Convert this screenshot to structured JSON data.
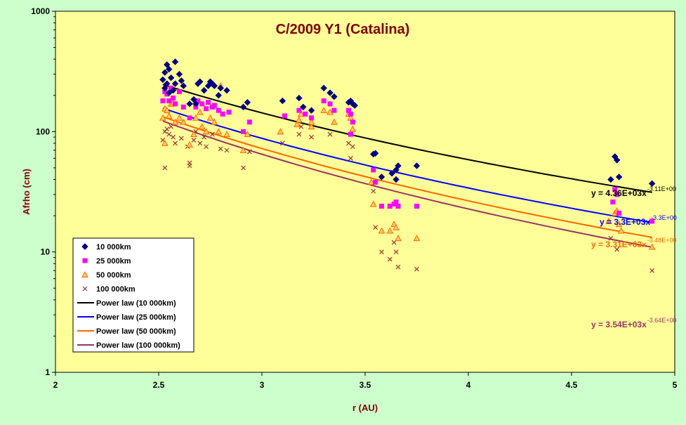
{
  "chart_data": {
    "type": "scatter",
    "title": "C/2009 Y1 (Catalina)",
    "xlabel": "r (AU)",
    "ylabel": "Afrho (cm)",
    "x_scale": "linear",
    "y_scale": "log",
    "xlim": [
      2,
      5
    ],
    "ylim": [
      1,
      1000
    ],
    "x_ticks": [
      "2",
      "2.5",
      "3",
      "3.5",
      "4",
      "4.5",
      "5"
    ],
    "y_ticks": [
      "1",
      "10",
      "100",
      "1000"
    ],
    "legend_position": "bottom-left",
    "colors": {
      "plot_bg": "#ffff99",
      "outer_bg": "#ccffcc",
      "title": "#800000",
      "axis_label": "#800000",
      "s10": "#000080",
      "s25": "#ff00ff",
      "s50": "#ff6600",
      "s100": "#993333",
      "fit10": "#000000",
      "fit25": "#0000ff",
      "fit50": "#ff6600",
      "fit100": "#993366"
    },
    "series": [
      {
        "name": "10 000km",
        "marker": "diamond",
        "points": [
          [
            2.52,
            270
          ],
          [
            2.53,
            310
          ],
          [
            2.54,
            360
          ],
          [
            2.55,
            330
          ],
          [
            2.53,
            230
          ],
          [
            2.54,
            250
          ],
          [
            2.55,
            210
          ],
          [
            2.56,
            280
          ],
          [
            2.57,
            220
          ],
          [
            2.58,
            250
          ],
          [
            2.58,
            380
          ],
          [
            2.6,
            300
          ],
          [
            2.61,
            265
          ],
          [
            2.62,
            240
          ],
          [
            2.65,
            170
          ],
          [
            2.67,
            185
          ],
          [
            2.68,
            170
          ],
          [
            2.69,
            250
          ],
          [
            2.7,
            260
          ],
          [
            2.72,
            220
          ],
          [
            2.74,
            240
          ],
          [
            2.75,
            260
          ],
          [
            2.76,
            250
          ],
          [
            2.77,
            240
          ],
          [
            2.79,
            200
          ],
          [
            2.8,
            230
          ],
          [
            2.83,
            220
          ],
          [
            2.91,
            160
          ],
          [
            2.93,
            175
          ],
          [
            3.1,
            180
          ],
          [
            3.18,
            190
          ],
          [
            3.2,
            160
          ],
          [
            3.24,
            150
          ],
          [
            3.3,
            230
          ],
          [
            3.33,
            210
          ],
          [
            3.35,
            195
          ],
          [
            3.42,
            175
          ],
          [
            3.43,
            180
          ],
          [
            3.44,
            170
          ],
          [
            3.45,
            165
          ],
          [
            3.54,
            65
          ],
          [
            3.55,
            66
          ],
          [
            3.58,
            42
          ],
          [
            3.63,
            45
          ],
          [
            3.65,
            40
          ],
          [
            3.65,
            48
          ],
          [
            3.66,
            52
          ],
          [
            3.75,
            52
          ],
          [
            4.69,
            40
          ],
          [
            4.71,
            62
          ],
          [
            4.72,
            58
          ],
          [
            4.73,
            42
          ],
          [
            4.89,
            37
          ]
        ]
      },
      {
        "name": "25 000km",
        "marker": "square",
        "points": [
          [
            2.52,
            180
          ],
          [
            2.53,
            215
          ],
          [
            2.54,
            205
          ],
          [
            2.55,
            180
          ],
          [
            2.56,
            230
          ],
          [
            2.57,
            190
          ],
          [
            2.58,
            170
          ],
          [
            2.6,
            215
          ],
          [
            2.62,
            160
          ],
          [
            2.65,
            130
          ],
          [
            2.68,
            160
          ],
          [
            2.69,
            180
          ],
          [
            2.71,
            170
          ],
          [
            2.73,
            155
          ],
          [
            2.74,
            175
          ],
          [
            2.76,
            160
          ],
          [
            2.77,
            165
          ],
          [
            2.79,
            150
          ],
          [
            2.81,
            140
          ],
          [
            2.84,
            145
          ],
          [
            2.91,
            100
          ],
          [
            2.94,
            120
          ],
          [
            3.11,
            135
          ],
          [
            3.18,
            150
          ],
          [
            3.21,
            140
          ],
          [
            3.24,
            130
          ],
          [
            3.3,
            180
          ],
          [
            3.33,
            170
          ],
          [
            3.35,
            150
          ],
          [
            3.42,
            150
          ],
          [
            3.43,
            140
          ],
          [
            3.44,
            120
          ],
          [
            3.43,
            95
          ],
          [
            3.54,
            48
          ],
          [
            3.55,
            38
          ],
          [
            3.58,
            24
          ],
          [
            3.62,
            24
          ],
          [
            3.64,
            25
          ],
          [
            3.65,
            26
          ],
          [
            3.66,
            24
          ],
          [
            3.75,
            24
          ],
          [
            4.7,
            26
          ],
          [
            4.71,
            33
          ],
          [
            4.72,
            30
          ],
          [
            4.73,
            21
          ],
          [
            4.89,
            18
          ]
        ]
      },
      {
        "name": "50 000km",
        "marker": "triangle",
        "points": [
          [
            2.52,
            130
          ],
          [
            2.53,
            155
          ],
          [
            2.54,
            150
          ],
          [
            2.53,
            80
          ],
          [
            2.55,
            135
          ],
          [
            2.56,
            170
          ],
          [
            2.57,
            175
          ],
          [
            2.58,
            120
          ],
          [
            2.6,
            130
          ],
          [
            2.62,
            120
          ],
          [
            2.65,
            78
          ],
          [
            2.67,
            95
          ],
          [
            2.68,
            130
          ],
          [
            2.7,
            145
          ],
          [
            2.71,
            110
          ],
          [
            2.73,
            100
          ],
          [
            2.75,
            130
          ],
          [
            2.77,
            120
          ],
          [
            2.79,
            100
          ],
          [
            2.8,
            240
          ],
          [
            2.83,
            95
          ],
          [
            2.91,
            70
          ],
          [
            2.93,
            95
          ],
          [
            3.09,
            100
          ],
          [
            3.17,
            115
          ],
          [
            3.18,
            125
          ],
          [
            3.19,
            140
          ],
          [
            3.24,
            110
          ],
          [
            3.24,
            120
          ],
          [
            3.3,
            150
          ],
          [
            3.33,
            145
          ],
          [
            3.35,
            120
          ],
          [
            3.42,
            140
          ],
          [
            3.43,
            130
          ],
          [
            3.44,
            105
          ],
          [
            3.53,
            38
          ],
          [
            3.54,
            25
          ],
          [
            3.58,
            15
          ],
          [
            3.62,
            15
          ],
          [
            3.64,
            17
          ],
          [
            3.65,
            16
          ],
          [
            3.66,
            13
          ],
          [
            3.75,
            13
          ],
          [
            4.68,
            18
          ],
          [
            4.71,
            21
          ],
          [
            4.72,
            22
          ],
          [
            4.73,
            17
          ],
          [
            4.74,
            15
          ],
          [
            4.89,
            11
          ]
        ]
      },
      {
        "name": "100 000km",
        "marker": "cross",
        "points": [
          [
            2.52,
            85
          ],
          [
            2.53,
            100
          ],
          [
            2.53,
            50
          ],
          [
            2.54,
            105
          ],
          [
            2.55,
            95
          ],
          [
            2.56,
            110
          ],
          [
            2.57,
            90
          ],
          [
            2.58,
            80
          ],
          [
            2.61,
            88
          ],
          [
            2.64,
            75
          ],
          [
            2.65,
            55
          ],
          [
            2.65,
            52
          ],
          [
            2.67,
            85
          ],
          [
            2.68,
            100
          ],
          [
            2.7,
            80
          ],
          [
            2.72,
            90
          ],
          [
            2.73,
            75
          ],
          [
            2.76,
            95
          ],
          [
            2.8,
            72
          ],
          [
            2.83,
            70
          ],
          [
            2.91,
            50
          ],
          [
            2.94,
            68
          ],
          [
            3.1,
            80
          ],
          [
            3.18,
            95
          ],
          [
            3.19,
            110
          ],
          [
            3.24,
            90
          ],
          [
            3.33,
            95
          ],
          [
            3.42,
            80
          ],
          [
            3.43,
            60
          ],
          [
            3.44,
            75
          ],
          [
            3.54,
            32
          ],
          [
            3.55,
            16
          ],
          [
            3.58,
            10
          ],
          [
            3.62,
            8.7
          ],
          [
            3.64,
            12
          ],
          [
            3.65,
            10
          ],
          [
            3.66,
            7.5
          ],
          [
            3.75,
            7.2
          ],
          [
            4.69,
            13
          ],
          [
            4.72,
            10.5
          ],
          [
            4.89,
            7
          ]
        ]
      }
    ],
    "fits": [
      {
        "name": "Power law (10 000km)",
        "a": 4360,
        "b": -3.11,
        "x_range": [
          2.52,
          4.89
        ],
        "eq_label": "y = 4.36E+03x",
        "exp_label": "-3.11E+00"
      },
      {
        "name": "Power law (25 000km)",
        "a": 3300,
        "b": -3.3,
        "x_range": [
          2.52,
          4.89
        ],
        "eq_label": "y = 3.3E+03x",
        "exp_label": "-3.3E+00"
      },
      {
        "name": "Power law (50 000km)",
        "a": 3310,
        "b": -3.48,
        "x_range": [
          2.52,
          4.89
        ],
        "eq_label": "y = 3.31E+03x",
        "exp_label": "-3.48E+00"
      },
      {
        "name": "Power law (100 000km)",
        "a": 3540,
        "b": -3.64,
        "x_range": [
          2.52,
          4.89
        ],
        "eq_label": "y = 3.54E+03x",
        "exp_label": "-3.64E+00"
      }
    ]
  }
}
